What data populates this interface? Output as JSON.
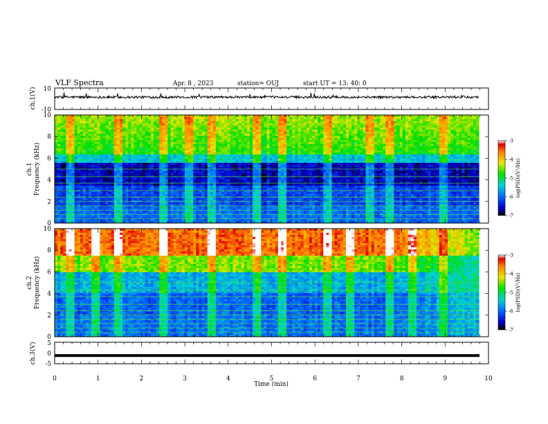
{
  "header": {
    "title": "VLF Spectra",
    "date": "Apr. 8 , 2023",
    "station": "station= OUJ",
    "start": "start  UT =  13: 40: 0"
  },
  "colorbar": {
    "label": "log(PSD)(V²/Hz)",
    "ticks": [
      "-3",
      "-4",
      "-5",
      "-6",
      "-7"
    ]
  },
  "chart_data": [
    {
      "type": "line",
      "ylabel": "ch.1(V)",
      "ylim": [
        -10,
        10
      ],
      "yticks": [
        "10",
        "-10"
      ],
      "xlim": [
        0,
        10
      ],
      "series": [
        {
          "values_description_level": 1.5
        }
      ]
    },
    {
      "type": "heatmap",
      "ylabel": "ch.1",
      "ylabel2": "Frequency (kHz)",
      "ylim": [
        0,
        10
      ],
      "yticks": [
        "0",
        "2",
        "4",
        "6",
        "8",
        "10"
      ],
      "xlim": [
        0,
        10
      ],
      "zlim": [
        -7,
        -3
      ]
    },
    {
      "type": "heatmap",
      "ylabel": "ch.2",
      "ylabel2": "Frequency (kHz)",
      "ylim": [
        0,
        10
      ],
      "yticks": [
        "0",
        "2",
        "4",
        "6",
        "8",
        "10"
      ],
      "xlim": [
        0,
        10
      ],
      "zlim": [
        -7,
        -3
      ]
    },
    {
      "type": "line",
      "ylabel": "ch.3(V)",
      "ylim": [
        -5,
        5
      ],
      "yticks": [
        "5",
        "0",
        "-5"
      ],
      "xlim": [
        0,
        10
      ],
      "series": [
        {
          "values_description_level": -1.2
        }
      ]
    }
  ],
  "xaxis": {
    "label": "Time  (min)",
    "ticks": [
      "0",
      "1",
      "2",
      "3",
      "4",
      "5",
      "6",
      "7",
      "8",
      "9",
      "10"
    ]
  }
}
